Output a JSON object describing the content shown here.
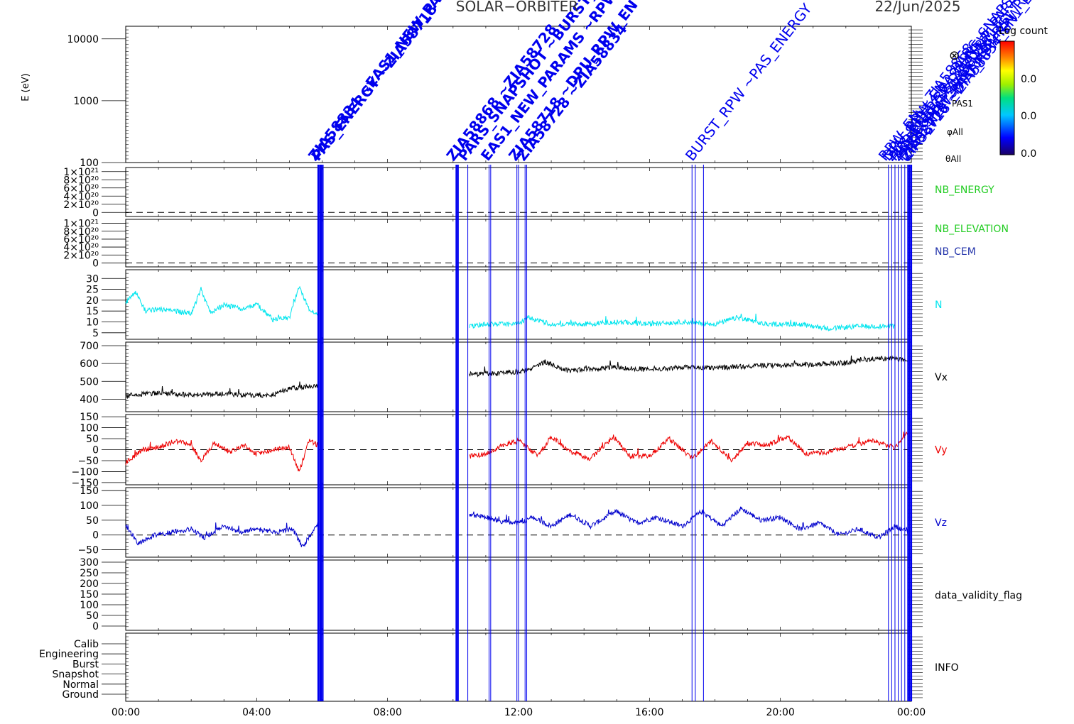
{
  "header": {
    "title": "SOLAR−ORBITER",
    "date": "22/Jun/2025"
  },
  "colorbar": {
    "label": "Log count",
    "ticks": [
      "0.0",
      "0.0",
      "0.0"
    ],
    "symbol": "⊗",
    "labels": [
      "φAll",
      "θAll",
      "PAS1"
    ]
  },
  "overlay_labels": {
    "examples": [
      "ZIA58834",
      "PAS_ENERGY",
      "ZIA58868",
      "PARS_SNAPSHOT",
      "EAS1_NEW_PARAMS",
      "ZIA58718",
      "ZIA58728",
      "BURST_RPW",
      "RPW_EN",
      "DPU_RPW_EN"
    ],
    "note_visible_text_is_overlapped": "ZIA58834 PAS_ENERGY ZIA58868 PARS_SNAPSHOT"
  },
  "chart_data": {
    "type": "line",
    "xaxis": {
      "ticks": [
        "00:00",
        "04:00",
        "08:00",
        "12:00",
        "16:00",
        "20:00",
        "00:00"
      ],
      "range_hours": [
        0,
        24
      ]
    },
    "panels": [
      {
        "name": "spectrogram",
        "ylabel": "E (eV)",
        "ytick_labels": [
          "10000",
          "1000",
          "100"
        ],
        "ytick_values": [
          10000,
          1000,
          100
        ],
        "scale": "log",
        "ylim": [
          100,
          16000
        ],
        "right_label": ""
      },
      {
        "name": "NB_ENERGY",
        "ytick_labels": [
          "1×10²¹",
          "8×10²⁰",
          "6×10²⁰",
          "4×10²⁰",
          "2×10²⁰",
          "0"
        ],
        "ytick_values": [
          1e+21,
          8e+20,
          6e+20,
          4e+20,
          2e+20,
          0
        ],
        "ylim": [
          -1e+20,
          1.1e+21
        ],
        "zero_line": true,
        "right_label": "NB_ENERGY",
        "right_color": "#22cc22"
      },
      {
        "name": "NB_ELEVATION",
        "ytick_labels": [
          "1×10²¹",
          "8×10²⁰",
          "6×10²⁰",
          "4×10²⁰",
          "2×10²⁰",
          "0"
        ],
        "ytick_values": [
          1e+21,
          8e+20,
          6e+20,
          4e+20,
          2e+20,
          0
        ],
        "ylim": [
          -1e+20,
          1.1e+21
        ],
        "zero_line": true,
        "right_label": "NB_ELEVATION",
        "right_color": "#22cc22",
        "right_label_2": "NB_CEM",
        "right_color_2": "#2233aa"
      },
      {
        "name": "N",
        "ytick_labels": [
          "30",
          "25",
          "20",
          "15",
          "10",
          "5"
        ],
        "ytick_values": [
          30,
          25,
          20,
          15,
          10,
          5
        ],
        "ylim": [
          2,
          34
        ],
        "right_label": "N",
        "right_color": "#00e5ee",
        "series_color": "#00e5ee",
        "series": [
          {
            "x": 0.0,
            "y": 19
          },
          {
            "x": 0.3,
            "y": 24
          },
          {
            "x": 0.6,
            "y": 15
          },
          {
            "x": 1.0,
            "y": 16
          },
          {
            "x": 1.5,
            "y": 15
          },
          {
            "x": 2.0,
            "y": 14
          },
          {
            "x": 2.3,
            "y": 25
          },
          {
            "x": 2.6,
            "y": 14
          },
          {
            "x": 3.0,
            "y": 18
          },
          {
            "x": 3.5,
            "y": 16
          },
          {
            "x": 4.0,
            "y": 18
          },
          {
            "x": 4.5,
            "y": 11
          },
          {
            "x": 5.0,
            "y": 12
          },
          {
            "x": 5.3,
            "y": 26
          },
          {
            "x": 5.6,
            "y": 16
          },
          {
            "x": 5.88,
            "y": 13
          },
          {
            "x": 10.5,
            "y": 8
          },
          {
            "x": 11.0,
            "y": 9
          },
          {
            "x": 12.0,
            "y": 9
          },
          {
            "x": 12.3,
            "y": 12
          },
          {
            "x": 13.0,
            "y": 9
          },
          {
            "x": 14.0,
            "y": 9
          },
          {
            "x": 15.0,
            "y": 10
          },
          {
            "x": 16.0,
            "y": 9
          },
          {
            "x": 17.0,
            "y": 10
          },
          {
            "x": 18.0,
            "y": 9
          },
          {
            "x": 18.7,
            "y": 12
          },
          {
            "x": 19.5,
            "y": 9
          },
          {
            "x": 20.5,
            "y": 9
          },
          {
            "x": 21.5,
            "y": 7
          },
          {
            "x": 22.5,
            "y": 8
          },
          {
            "x": 23.5,
            "y": 8
          }
        ]
      },
      {
        "name": "Vx",
        "ytick_labels": [
          "700",
          "600",
          "500",
          "400"
        ],
        "ytick_values": [
          700,
          600,
          500,
          400
        ],
        "ylim": [
          330,
          720
        ],
        "right_label": "Vx",
        "right_color": "#000000",
        "series_color": "#000000",
        "series": [
          {
            "x": 0.0,
            "y": 420
          },
          {
            "x": 1.0,
            "y": 435
          },
          {
            "x": 2.0,
            "y": 425
          },
          {
            "x": 3.0,
            "y": 430
          },
          {
            "x": 4.0,
            "y": 420
          },
          {
            "x": 4.6,
            "y": 430
          },
          {
            "x": 5.0,
            "y": 460
          },
          {
            "x": 5.88,
            "y": 475
          },
          {
            "x": 10.5,
            "y": 540
          },
          {
            "x": 11.5,
            "y": 545
          },
          {
            "x": 12.2,
            "y": 560
          },
          {
            "x": 12.8,
            "y": 610
          },
          {
            "x": 13.5,
            "y": 560
          },
          {
            "x": 15.0,
            "y": 580
          },
          {
            "x": 16.0,
            "y": 565
          },
          {
            "x": 17.0,
            "y": 580
          },
          {
            "x": 18.0,
            "y": 575
          },
          {
            "x": 19.0,
            "y": 585
          },
          {
            "x": 20.0,
            "y": 590
          },
          {
            "x": 21.0,
            "y": 595
          },
          {
            "x": 22.0,
            "y": 605
          },
          {
            "x": 23.0,
            "y": 630
          },
          {
            "x": 23.9,
            "y": 620
          }
        ]
      },
      {
        "name": "Vy",
        "ytick_labels": [
          "150",
          "100",
          "50",
          "0",
          "−50",
          "−100",
          "−150"
        ],
        "ytick_values": [
          150,
          100,
          50,
          0,
          -50,
          -100,
          -150
        ],
        "ylim": [
          -160,
          160
        ],
        "zero_line": true,
        "right_label": "Vy",
        "right_color": "#ee0000",
        "series_color": "#ee0000",
        "series": [
          {
            "x": 0.0,
            "y": -60
          },
          {
            "x": 0.5,
            "y": 0
          },
          {
            "x": 1.0,
            "y": 10
          },
          {
            "x": 1.5,
            "y": 40
          },
          {
            "x": 2.0,
            "y": 20
          },
          {
            "x": 2.3,
            "y": -50
          },
          {
            "x": 2.7,
            "y": 30
          },
          {
            "x": 3.2,
            "y": -10
          },
          {
            "x": 3.6,
            "y": 20
          },
          {
            "x": 4.0,
            "y": -20
          },
          {
            "x": 4.5,
            "y": 0
          },
          {
            "x": 5.0,
            "y": 10
          },
          {
            "x": 5.3,
            "y": -100
          },
          {
            "x": 5.6,
            "y": 40
          },
          {
            "x": 5.88,
            "y": 20
          },
          {
            "x": 10.5,
            "y": -30
          },
          {
            "x": 11.0,
            "y": -20
          },
          {
            "x": 11.5,
            "y": 20
          },
          {
            "x": 12.0,
            "y": 40
          },
          {
            "x": 12.6,
            "y": -30
          },
          {
            "x": 13.0,
            "y": 60
          },
          {
            "x": 13.6,
            "y": -10
          },
          {
            "x": 14.2,
            "y": -40
          },
          {
            "x": 14.9,
            "y": 60
          },
          {
            "x": 15.4,
            "y": -30
          },
          {
            "x": 16.0,
            "y": -30
          },
          {
            "x": 16.6,
            "y": 50
          },
          {
            "x": 17.3,
            "y": -40
          },
          {
            "x": 17.9,
            "y": 40
          },
          {
            "x": 18.5,
            "y": -50
          },
          {
            "x": 19.0,
            "y": 30
          },
          {
            "x": 19.6,
            "y": 20
          },
          {
            "x": 20.2,
            "y": 60
          },
          {
            "x": 20.8,
            "y": -20
          },
          {
            "x": 21.5,
            "y": -10
          },
          {
            "x": 22.2,
            "y": 20
          },
          {
            "x": 22.8,
            "y": 40
          },
          {
            "x": 23.5,
            "y": 10
          },
          {
            "x": 23.9,
            "y": 80
          }
        ]
      },
      {
        "name": "Vz",
        "ytick_labels": [
          "150",
          "100",
          "50",
          "0",
          "−50"
        ],
        "ytick_values": [
          150,
          100,
          50,
          0,
          -50
        ],
        "ylim": [
          -75,
          160
        ],
        "zero_line": true,
        "right_label": "Vz",
        "right_color": "#0000cc",
        "series_color": "#0000cc",
        "series": [
          {
            "x": 0.0,
            "y": 30
          },
          {
            "x": 0.4,
            "y": -30
          },
          {
            "x": 0.9,
            "y": 0
          },
          {
            "x": 1.4,
            "y": 10
          },
          {
            "x": 2.0,
            "y": 20
          },
          {
            "x": 2.4,
            "y": -10
          },
          {
            "x": 3.0,
            "y": 30
          },
          {
            "x": 3.5,
            "y": 10
          },
          {
            "x": 4.0,
            "y": 20
          },
          {
            "x": 4.6,
            "y": 10
          },
          {
            "x": 5.1,
            "y": 20
          },
          {
            "x": 5.4,
            "y": -40
          },
          {
            "x": 5.88,
            "y": 40
          },
          {
            "x": 10.5,
            "y": 70
          },
          {
            "x": 11.0,
            "y": 60
          },
          {
            "x": 11.5,
            "y": 45
          },
          {
            "x": 12.0,
            "y": 40
          },
          {
            "x": 12.4,
            "y": 60
          },
          {
            "x": 13.0,
            "y": 30
          },
          {
            "x": 13.6,
            "y": 70
          },
          {
            "x": 14.2,
            "y": 30
          },
          {
            "x": 15.0,
            "y": 80
          },
          {
            "x": 15.6,
            "y": 40
          },
          {
            "x": 16.2,
            "y": 60
          },
          {
            "x": 17.0,
            "y": 30
          },
          {
            "x": 17.6,
            "y": 80
          },
          {
            "x": 18.2,
            "y": 30
          },
          {
            "x": 18.8,
            "y": 90
          },
          {
            "x": 19.4,
            "y": 50
          },
          {
            "x": 20.0,
            "y": 60
          },
          {
            "x": 20.6,
            "y": 20
          },
          {
            "x": 21.2,
            "y": 40
          },
          {
            "x": 21.8,
            "y": 0
          },
          {
            "x": 22.4,
            "y": 20
          },
          {
            "x": 23.0,
            "y": -10
          },
          {
            "x": 23.5,
            "y": 30
          },
          {
            "x": 23.9,
            "y": 10
          }
        ]
      },
      {
        "name": "data_validity_flag",
        "ytick_labels": [
          "300",
          "250",
          "200",
          "150",
          "100",
          "50",
          "0"
        ],
        "ytick_values": [
          300,
          250,
          200,
          150,
          100,
          50,
          0
        ],
        "ylim": [
          -20,
          310
        ],
        "right_label": "data_validity_flag",
        "right_color": "#000000"
      },
      {
        "name": "INFO",
        "category_labels": [
          "Calib",
          "Engineering",
          "Burst",
          "Snapshot",
          "Normal",
          "Ground"
        ],
        "right_label": "INFO",
        "right_color": "#000000"
      }
    ],
    "event_lines_hours": [
      5.88,
      5.93,
      5.97,
      6.02,
      10.1,
      10.15,
      10.45,
      11.1,
      11.15,
      11.95,
      12.0,
      12.2,
      12.25,
      17.3,
      17.4,
      17.65,
      23.3,
      23.4,
      23.5,
      23.6,
      23.7,
      23.8,
      23.9,
      23.95,
      24.0
    ],
    "event_line_color": "#0000ee"
  }
}
